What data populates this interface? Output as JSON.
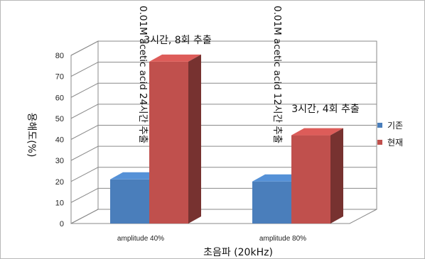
{
  "chart_data": {
    "type": "bar",
    "categories": [
      "amplitude 40%",
      "amplitude 80%"
    ],
    "series": [
      {
        "name": "기존",
        "values": [
          21,
          20
        ],
        "color": "#4a7ebb"
      },
      {
        "name": "현재",
        "values": [
          77,
          42
        ],
        "color": "#c0504d"
      }
    ],
    "xlabel": "초음파 (20kHz)",
    "ylabel": "용해도(%)",
    "ylim": [
      0,
      80
    ],
    "yticks": [
      0,
      10,
      20,
      30,
      40,
      50,
      60,
      70,
      80
    ],
    "grid": true,
    "legend_position": "right",
    "annotations": {
      "bar_top": [
        "3시간, 8회 추출",
        "3시간, 4회 추출"
      ],
      "vertical": [
        "0.01M acetic acid 24시간 추출",
        "0.01M acetic acid 12시간 추출"
      ]
    }
  }
}
